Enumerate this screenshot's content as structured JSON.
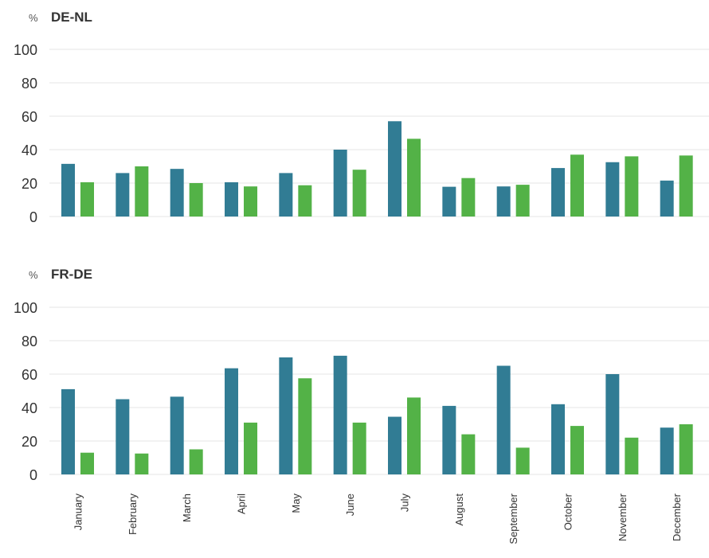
{
  "colors": {
    "series1": "#317c94",
    "series2": "#53b247",
    "grid": "#e6e6e6",
    "text": "#333333"
  },
  "chart_data": [
    {
      "type": "bar",
      "title": "DE-NL",
      "unit": "%",
      "categories": [
        "January",
        "February",
        "March",
        "April",
        "May",
        "June",
        "July",
        "August",
        "September",
        "October",
        "November",
        "December"
      ],
      "series": [
        {
          "values": [
            31.5,
            26,
            28.5,
            20.5,
            26,
            40,
            57,
            17.8,
            18,
            29,
            32.5,
            21.5
          ]
        },
        {
          "values": [
            20.5,
            30,
            20,
            18,
            18.7,
            28,
            46.5,
            23,
            19,
            37,
            36,
            36.5
          ]
        }
      ],
      "yticks": [
        0,
        20,
        40,
        60,
        80,
        100
      ],
      "ylim": [
        0,
        100
      ],
      "grid": true,
      "show_xlabels": false
    },
    {
      "type": "bar",
      "title": "FR-DE",
      "unit": "%",
      "categories": [
        "January",
        "February",
        "March",
        "April",
        "May",
        "June",
        "July",
        "August",
        "September",
        "October",
        "November",
        "December"
      ],
      "series": [
        {
          "values": [
            51,
            45,
            46.5,
            63.5,
            70,
            71,
            34.5,
            41,
            65,
            42,
            60,
            28
          ]
        },
        {
          "values": [
            13,
            12.5,
            15,
            31,
            57.5,
            31,
            46,
            24,
            16,
            29,
            22,
            30
          ]
        }
      ],
      "yticks": [
        0,
        20,
        40,
        60,
        80,
        100
      ],
      "ylim": [
        0,
        100
      ],
      "grid": true,
      "show_xlabels": true
    }
  ]
}
